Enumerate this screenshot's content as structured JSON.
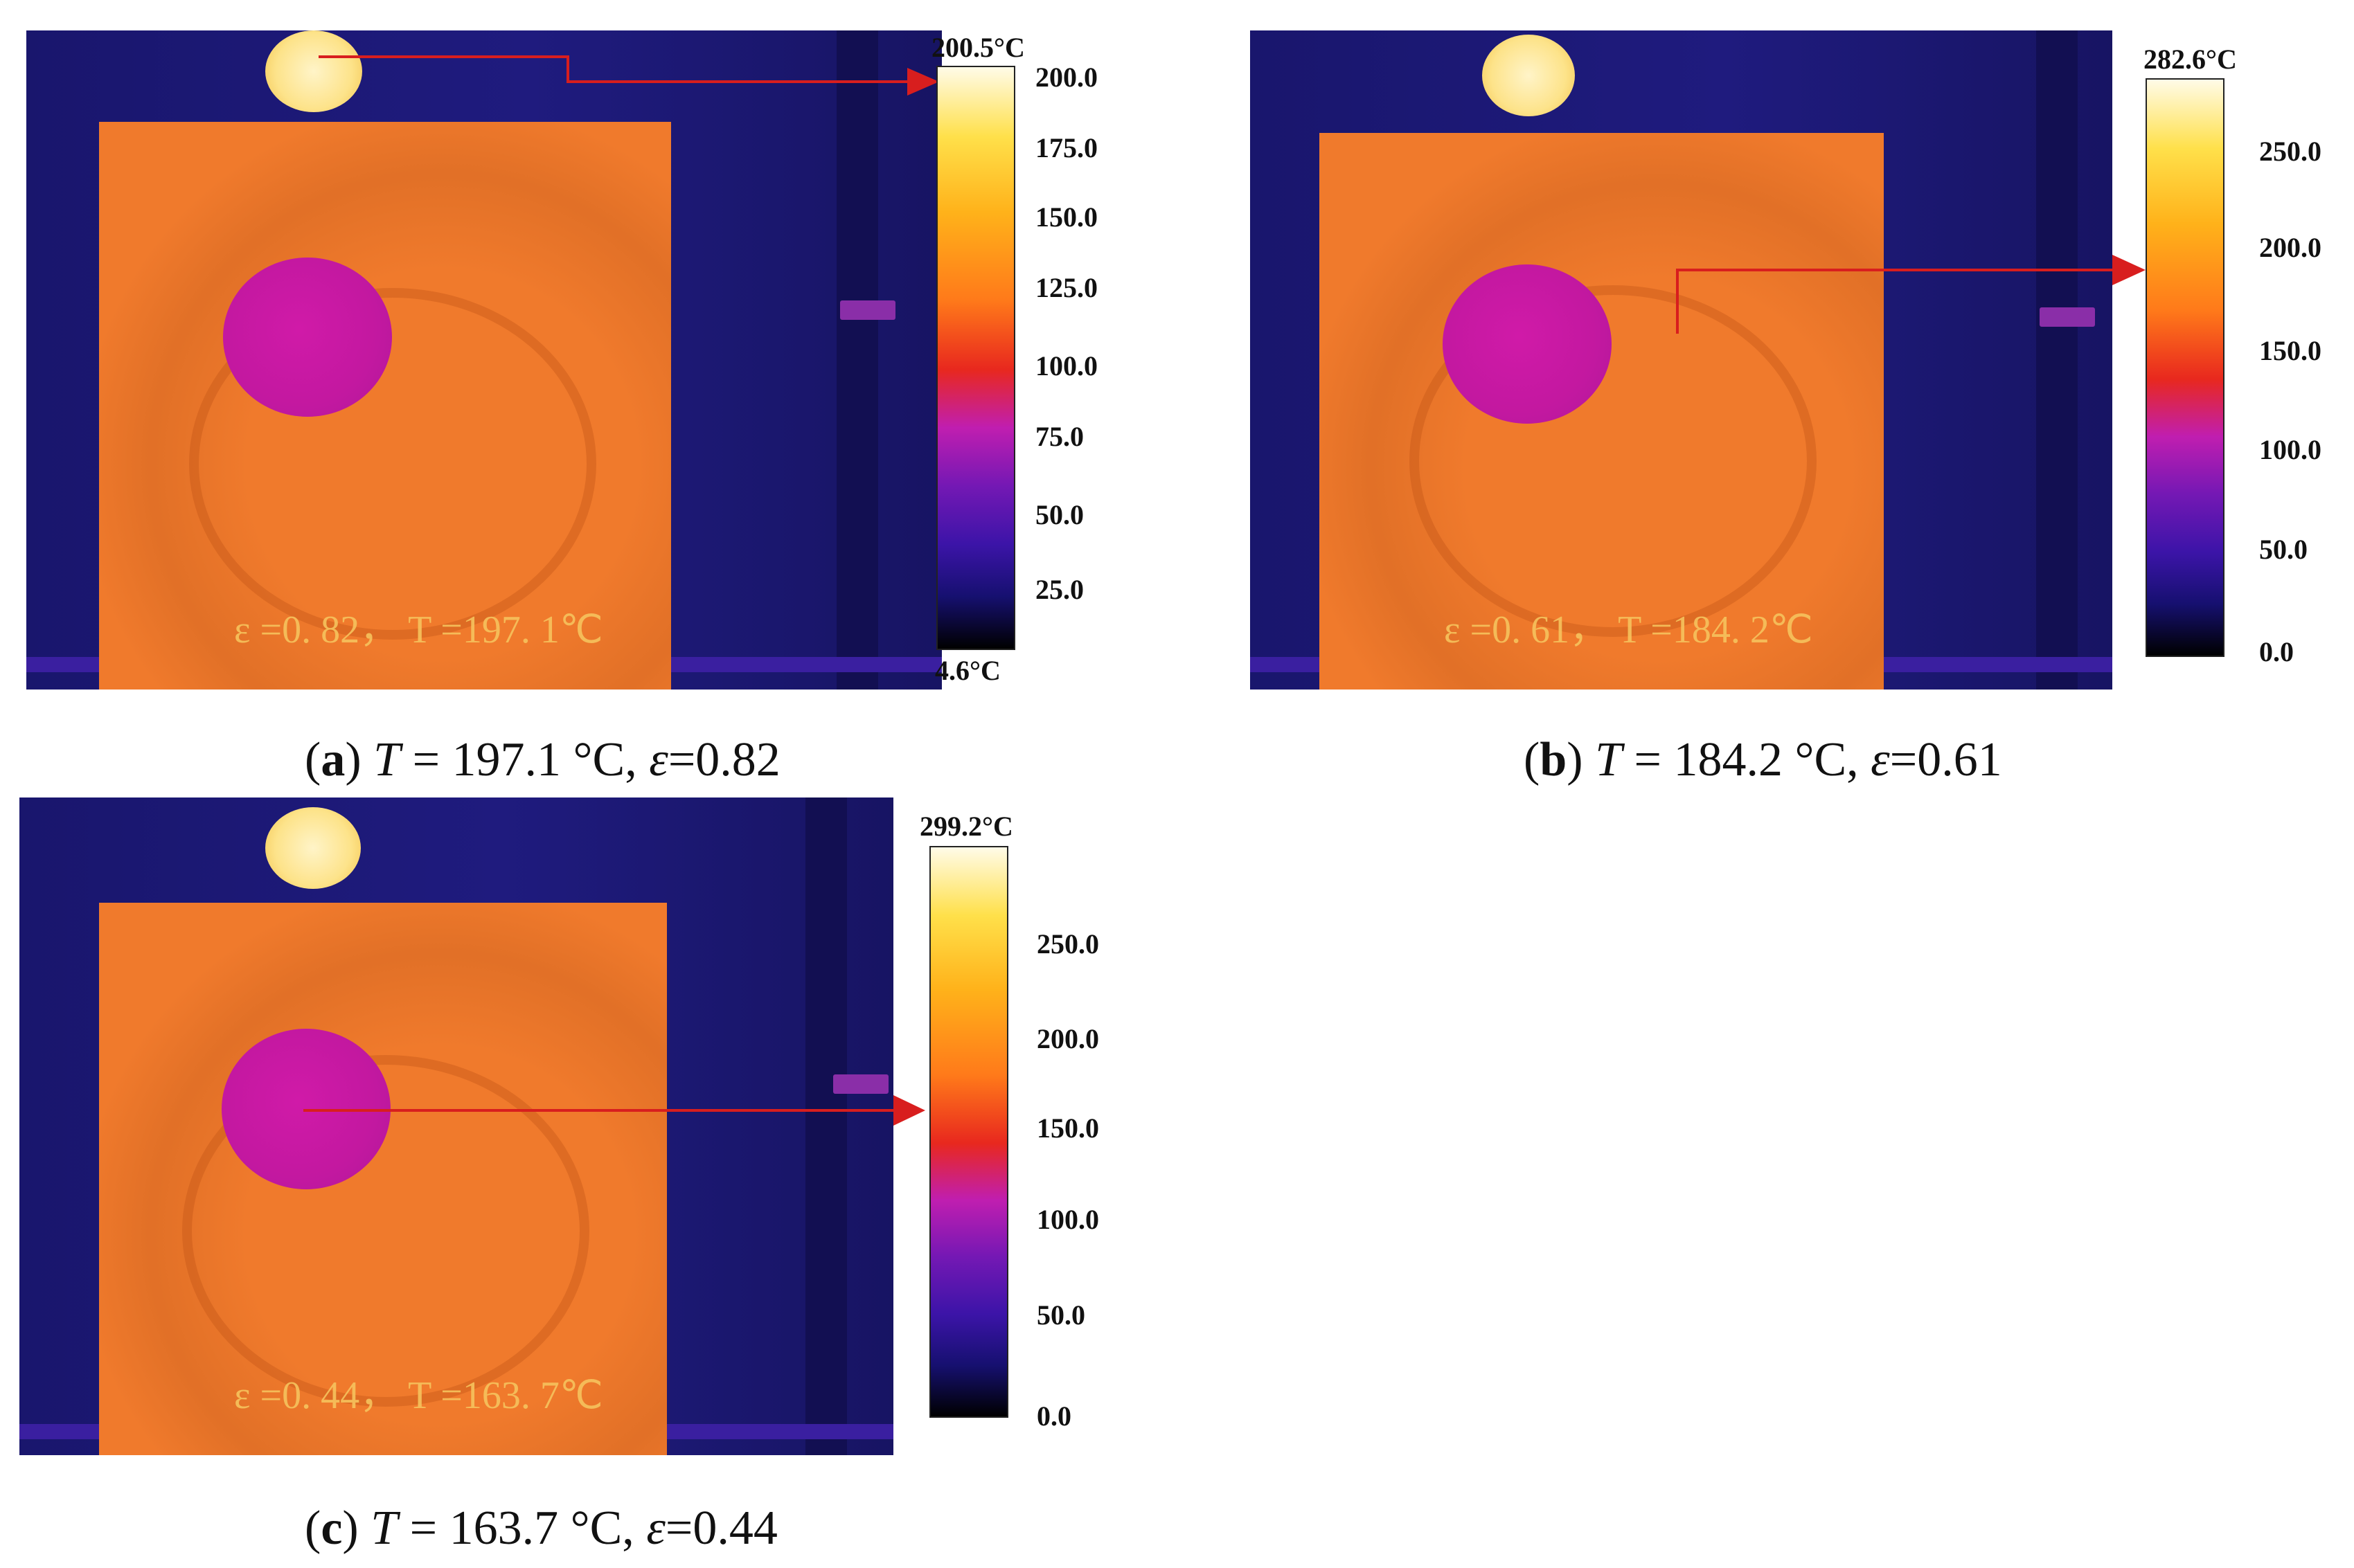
{
  "panels": [
    {
      "id": "a",
      "overlay": "ε =0. 82，  T =197. 1℃",
      "max_label": "200.5°C",
      "min_label": "4.6°C",
      "ticks": [
        "200.0",
        "175.0",
        "150.0",
        "125.0",
        "100.0",
        "75.0",
        "50.0",
        "25.0"
      ],
      "caption": {
        "letter": "a",
        "t_symbol": "T",
        "t_value": " = 197.1 °C, ",
        "e_symbol": "ε",
        "e_value": "=0.82"
      }
    },
    {
      "id": "b",
      "overlay": "ε =0. 61，  T =184. 2℃",
      "max_label": "282.6°C",
      "min_label": "",
      "ticks": [
        "250.0",
        "200.0",
        "150.0",
        "100.0",
        "50.0",
        "0.0"
      ],
      "caption": {
        "letter": "b",
        "t_symbol": "T",
        "t_value": " = 184.2 °C, ",
        "e_symbol": "ε",
        "e_value": "=0.61"
      }
    },
    {
      "id": "c",
      "overlay": "ε =0. 44，  T =163. 7℃",
      "max_label": "299.2°C",
      "min_label": "",
      "ticks": [
        "250.0",
        "200.0",
        "150.0",
        "100.0",
        "50.0",
        "0.0"
      ],
      "caption": {
        "letter": "c",
        "t_symbol": "T",
        "t_value": " = 163.7 °C, ",
        "e_symbol": "ε",
        "e_value": "=0.44"
      }
    }
  ],
  "colors": {
    "background": "#1c1872",
    "plate": "#f07a2c",
    "hole": "#c318a0",
    "arrow": "#d81e1e",
    "reference_disc": "#fde38a"
  }
}
